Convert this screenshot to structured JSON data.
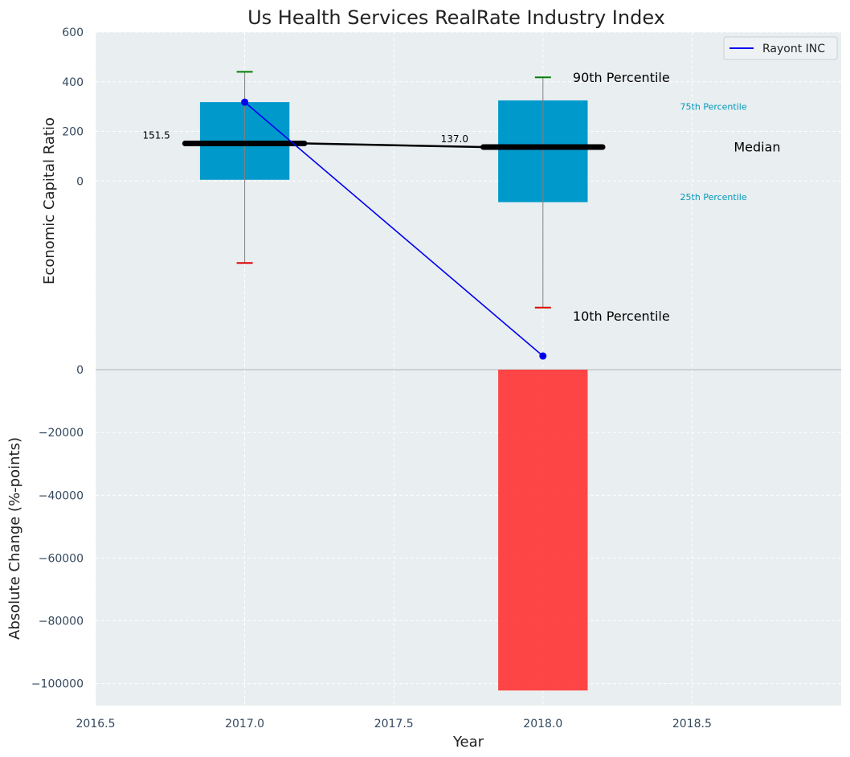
{
  "chart_data": [
    {
      "type": "box",
      "title": "Us Health Services RealRate Industry Index",
      "ylabel": "Economic Capital Ratio",
      "ylim": [
        -760,
        600
      ],
      "yticks": [
        0,
        200,
        400,
        600
      ],
      "xlim": [
        2016.5,
        2019.0
      ],
      "grid": true,
      "legend_position": "top-right",
      "boxes": [
        {
          "x": 2017.0,
          "p10": -330,
          "p25": 5,
          "median": 151.5,
          "p75": 318,
          "p90": 440,
          "median_label": "151.5"
        },
        {
          "x": 2018.0,
          "p10": -510,
          "p25": -85,
          "median": 137.0,
          "p75": 325,
          "p90": 418,
          "median_label": "137.0"
        }
      ],
      "series": [
        {
          "name": "Rayont INC",
          "x": [
            2017.0,
            2018.0
          ],
          "y": [
            318,
            -705
          ]
        }
      ],
      "annotations": [
        {
          "text": "90th Percentile",
          "x": 2018.1,
          "y": 418
        },
        {
          "text": "75th Percentile",
          "x": 2018.46,
          "y": 300
        },
        {
          "text": "Median",
          "x": 2018.64,
          "y": 137
        },
        {
          "text": "25th Percentile",
          "x": 2018.46,
          "y": -65
        },
        {
          "text": "10th Percentile",
          "x": 2018.1,
          "y": -545
        }
      ]
    },
    {
      "type": "bar",
      "xlabel": "Year",
      "ylabel": "Absolute Change (%-points)",
      "ylim": [
        -107000,
        0
      ],
      "yticks": [
        0,
        -20000,
        -40000,
        -60000,
        -80000,
        -100000
      ],
      "ytick_labels": [
        "0",
        "−20000",
        "−40000",
        "−60000",
        "−80000",
        "−100000"
      ],
      "xlim": [
        2016.5,
        2019.0
      ],
      "xticks": [
        2016.5,
        2017.0,
        2017.5,
        2018.0,
        2018.5
      ],
      "xtick_labels": [
        "2016.5",
        "2017.0",
        "2017.5",
        "2018.0",
        "2018.5"
      ],
      "grid": true,
      "bars": [
        {
          "x": 2018.0,
          "value": -102200
        }
      ]
    }
  ],
  "colors": {
    "background": "#e9eef0",
    "grid": "#ffffff",
    "box_fill": "#0099cc",
    "whisker": "#808080",
    "cap_top": "#008000",
    "cap_bottom": "#dd0000",
    "median": "#000000",
    "series": "#0000ee",
    "bar": "#ff3b3b",
    "percentile_small": "#0099bb"
  }
}
